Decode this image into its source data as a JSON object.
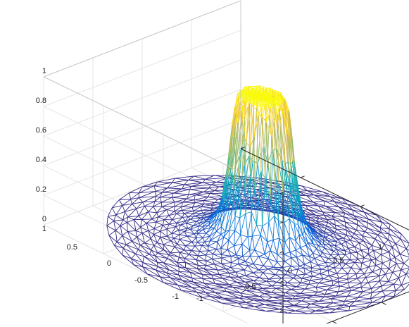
{
  "chart_data": {
    "type": "surface",
    "colormap": "parula",
    "title": "",
    "xlabel": "",
    "ylabel": "",
    "zlabel": "",
    "grid": true,
    "box": true,
    "xlim": [
      -1,
      1
    ],
    "ylim": [
      -1,
      1
    ],
    "zlim": [
      0,
      1
    ],
    "x_ticks": [
      "-1",
      "-0.5",
      "0",
      "0.5",
      "1"
    ],
    "y_ticks": [
      "-1",
      "-0.5",
      "0",
      "0.5",
      "1"
    ],
    "z_ticks": [
      "0",
      "0.2",
      "0.4",
      "0.6",
      "0.8",
      "1"
    ],
    "series": [
      {
        "description_of_shape": "wireframe triangular mesh over unit disk",
        "domain": "unit disk",
        "peak_height": 1,
        "plateau_radius": 0.16,
        "base_height": 0,
        "colors": [
          "#352a87",
          "#0363e1",
          "#1485d4",
          "#06a7c6",
          "#38b99e",
          "#92bf73",
          "#d9ba56",
          "#fcce2e",
          "#f9fb0e"
        ]
      }
    ]
  }
}
